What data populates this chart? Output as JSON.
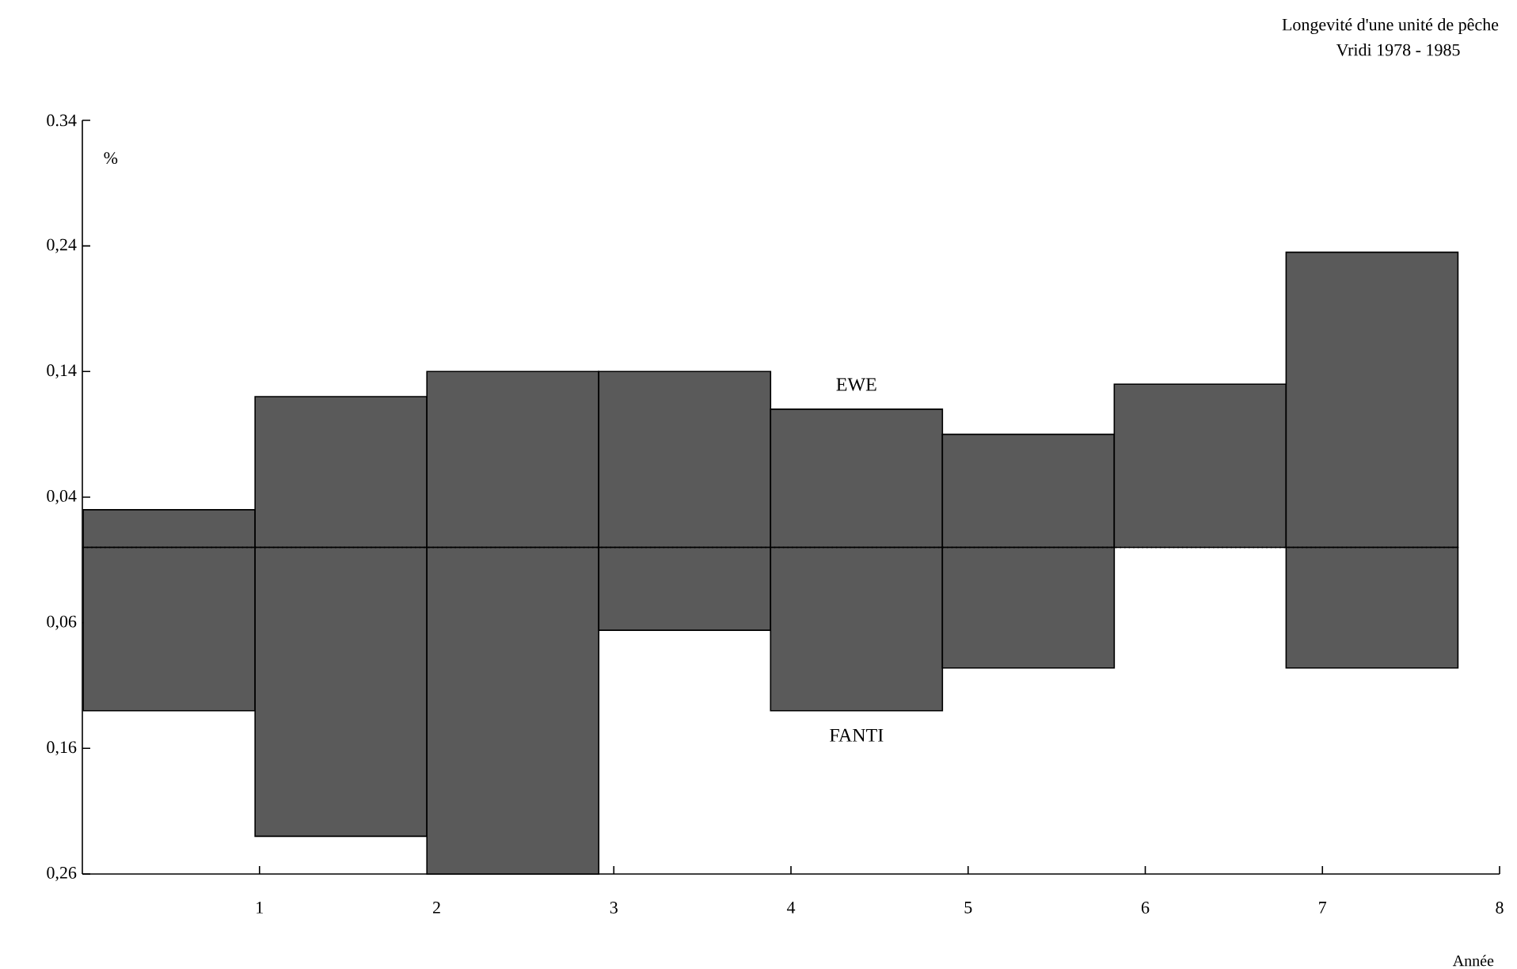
{
  "chart_data": {
    "type": "bar",
    "title": "Longevité d'une unité de pêche",
    "subtitle": "Vridi 1978 - 1985",
    "xlabel": "Année",
    "ylabel": "%",
    "x": [
      0.49,
      1.46,
      2.43,
      3.4,
      4.37,
      5.34,
      6.31,
      7.28
    ],
    "series": [
      {
        "name": "EWE",
        "color": "#5a5a5a",
        "values": [
          0.03,
          0.12,
          0.14,
          0.14,
          0.11,
          0.09,
          0.13,
          0.235
        ]
      },
      {
        "name": "FANTI",
        "color": "#5a5a5a",
        "values": [
          -0.13,
          -0.23,
          -0.26,
          -0.066,
          -0.13,
          -0.096,
          null,
          -0.096
        ]
      }
    ],
    "xlim": [
      0,
      8
    ],
    "xticks": [
      1,
      2,
      3,
      4,
      5,
      6,
      7,
      8
    ],
    "ylim": [
      -0.26,
      0.34
    ],
    "yticks": [
      0.34,
      {
        "value": 0.24,
        "label": "0,24"
      },
      {
        "value": 0.14,
        "label": "0,14"
      },
      {
        "value": 0.04,
        "label": "0,04"
      },
      {
        "value": -0.06,
        "label": "0,06"
      },
      {
        "value": -0.16,
        "label": "0,16"
      },
      {
        "value": -0.26,
        "label": "0,26"
      }
    ],
    "ref_lines": [
      {
        "axis": "y",
        "value": 0,
        "line_style": "dotted",
        "color": "#000000"
      }
    ],
    "stacked": true,
    "grid": false
  }
}
